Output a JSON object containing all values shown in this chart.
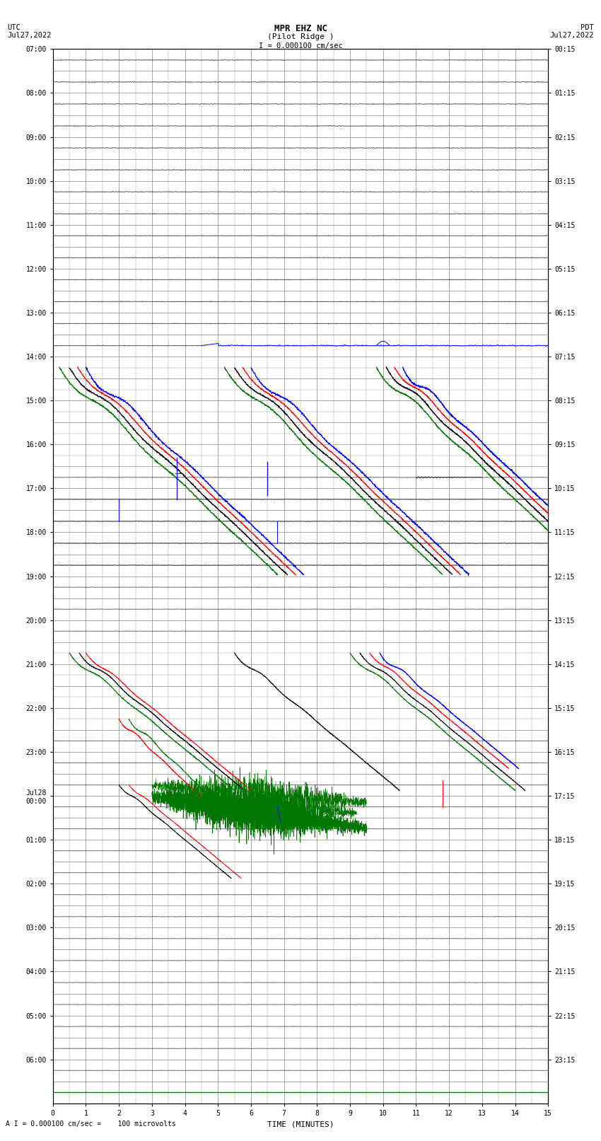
{
  "title_line1": "MPR EHZ NC",
  "title_line2": "(Pilot Ridge )",
  "scale_label": "I = 0.000100 cm/sec",
  "footer_label": "A I = 0.000100 cm/sec =    100 microvolts",
  "xlabel": "TIME (MINUTES)",
  "left_times": [
    "07:00",
    "",
    "08:00",
    "",
    "09:00",
    "",
    "10:00",
    "",
    "11:00",
    "",
    "12:00",
    "",
    "13:00",
    "",
    "14:00",
    "",
    "15:00",
    "",
    "16:00",
    "",
    "17:00",
    "",
    "18:00",
    "",
    "19:00",
    "",
    "20:00",
    "",
    "21:00",
    "",
    "22:00",
    "",
    "23:00",
    "",
    "Jul28\n00:00",
    "",
    "01:00",
    "",
    "02:00",
    "",
    "03:00",
    "",
    "04:00",
    "",
    "05:00",
    "",
    "06:00",
    ""
  ],
  "right_times": [
    "00:15",
    "",
    "01:15",
    "",
    "02:15",
    "",
    "03:15",
    "",
    "04:15",
    "",
    "05:15",
    "",
    "06:15",
    "",
    "07:15",
    "",
    "08:15",
    "",
    "09:15",
    "",
    "10:15",
    "",
    "11:15",
    "",
    "12:15",
    "",
    "13:15",
    "",
    "14:15",
    "",
    "15:15",
    "",
    "16:15",
    "",
    "17:15",
    "",
    "18:15",
    "",
    "19:15",
    "",
    "20:15",
    "",
    "21:15",
    "",
    "22:15",
    "",
    "23:15",
    ""
  ],
  "num_rows": 48,
  "num_cols": 15,
  "background": "#ffffff",
  "grid_color": "#999999",
  "black": "#000000",
  "blue": "#0000ff",
  "red": "#ff0000",
  "green": "#007700"
}
